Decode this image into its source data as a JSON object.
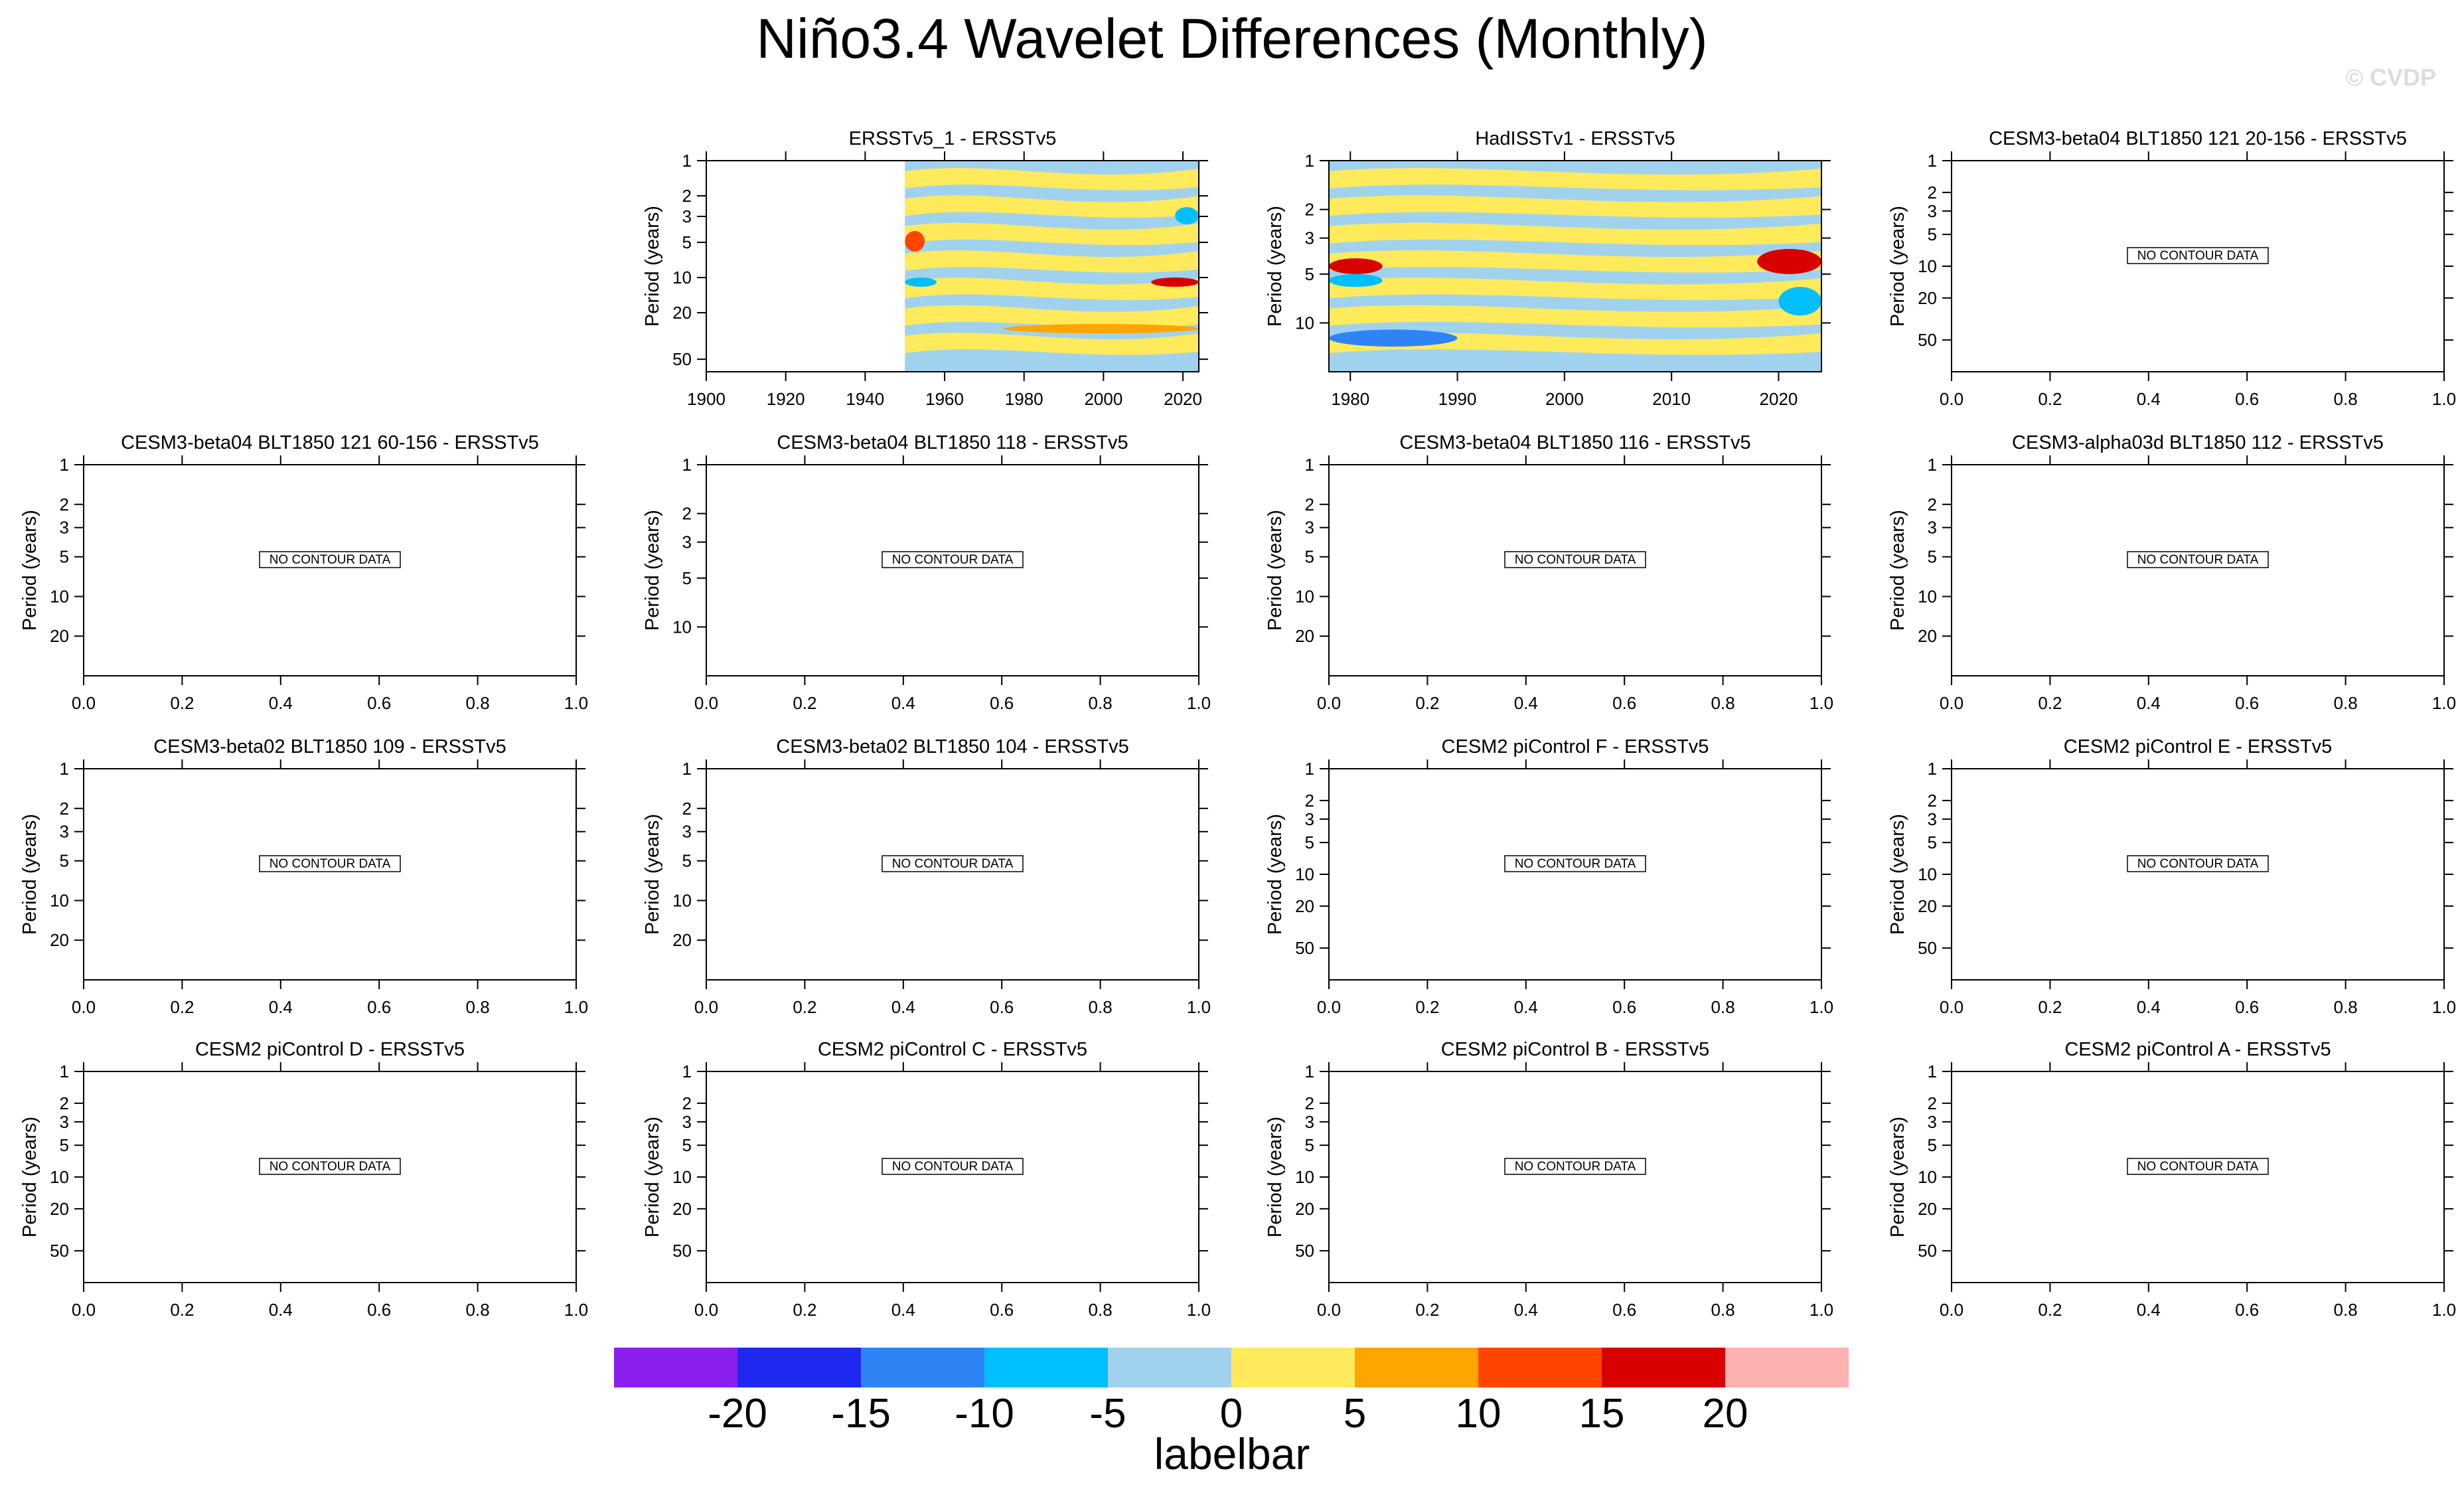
{
  "title": "Niño3.4 Wavelet Differences (Monthly)",
  "watermark": "© CVDP",
  "panels": [
    {
      "title": "ERSSTv5_1 - ERSSTv5",
      "has_data": true,
      "y_ticks": [
        "1",
        "2",
        "3",
        "5",
        "10",
        "20",
        "50"
      ],
      "x_ticks": [
        "1900",
        "1920",
        "1940",
        "1960",
        "1980",
        "2000",
        "2020"
      ]
    },
    {
      "title": "HadISSTv1 - ERSSTv5",
      "has_data": true,
      "y_ticks": [
        "1",
        "2",
        "3",
        "5",
        "10"
      ],
      "x_ticks": [
        "1980",
        "1990",
        "2000",
        "2010",
        "2020"
      ]
    },
    {
      "title": "CESM3-beta04 BLT1850 121 20-156 - ERSSTv5",
      "has_data": false,
      "y_ticks": [
        "1",
        "2",
        "3",
        "5",
        "10",
        "20",
        "50"
      ],
      "x_ticks": [
        "0.0",
        "0.2",
        "0.4",
        "0.6",
        "0.8",
        "1.0"
      ]
    },
    {
      "title": "CESM3-beta04 BLT1850 121 60-156 - ERSSTv5",
      "has_data": false,
      "y_ticks": [
        "1",
        "2",
        "3",
        "5",
        "10",
        "20"
      ],
      "x_ticks": [
        "0.0",
        "0.2",
        "0.4",
        "0.6",
        "0.8",
        "1.0"
      ]
    },
    {
      "title": "CESM3-beta04 BLT1850 118 - ERSSTv5",
      "has_data": false,
      "y_ticks": [
        "1",
        "2",
        "3",
        "5",
        "10"
      ],
      "x_ticks": [
        "0.0",
        "0.2",
        "0.4",
        "0.6",
        "0.8",
        "1.0"
      ]
    },
    {
      "title": "CESM3-beta04 BLT1850 116 - ERSSTv5",
      "has_data": false,
      "y_ticks": [
        "1",
        "2",
        "3",
        "5",
        "10",
        "20"
      ],
      "x_ticks": [
        "0.0",
        "0.2",
        "0.4",
        "0.6",
        "0.8",
        "1.0"
      ]
    },
    {
      "title": "CESM3-alpha03d BLT1850 112 - ERSSTv5",
      "has_data": false,
      "y_ticks": [
        "1",
        "2",
        "3",
        "5",
        "10",
        "20"
      ],
      "x_ticks": [
        "0.0",
        "0.2",
        "0.4",
        "0.6",
        "0.8",
        "1.0"
      ]
    },
    {
      "title": "CESM3-beta02 BLT1850 109 - ERSSTv5",
      "has_data": false,
      "y_ticks": [
        "1",
        "2",
        "3",
        "5",
        "10",
        "20"
      ],
      "x_ticks": [
        "0.0",
        "0.2",
        "0.4",
        "0.6",
        "0.8",
        "1.0"
      ]
    },
    {
      "title": "CESM3-beta02 BLT1850 104 - ERSSTv5",
      "has_data": false,
      "y_ticks": [
        "1",
        "2",
        "3",
        "5",
        "10",
        "20"
      ],
      "x_ticks": [
        "0.0",
        "0.2",
        "0.4",
        "0.6",
        "0.8",
        "1.0"
      ]
    },
    {
      "title": "CESM2 piControl F - ERSSTv5",
      "has_data": false,
      "y_ticks": [
        "1",
        "2",
        "3",
        "5",
        "10",
        "20",
        "50"
      ],
      "x_ticks": [
        "0.0",
        "0.2",
        "0.4",
        "0.6",
        "0.8",
        "1.0"
      ]
    },
    {
      "title": "CESM2 piControl E - ERSSTv5",
      "has_data": false,
      "y_ticks": [
        "1",
        "2",
        "3",
        "5",
        "10",
        "20",
        "50"
      ],
      "x_ticks": [
        "0.0",
        "0.2",
        "0.4",
        "0.6",
        "0.8",
        "1.0"
      ]
    },
    {
      "title": "CESM2 piControl D - ERSSTv5",
      "has_data": false,
      "y_ticks": [
        "1",
        "2",
        "3",
        "5",
        "10",
        "20",
        "50"
      ],
      "x_ticks": [
        "0.0",
        "0.2",
        "0.4",
        "0.6",
        "0.8",
        "1.0"
      ]
    },
    {
      "title": "CESM2 piControl C - ERSSTv5",
      "has_data": false,
      "y_ticks": [
        "1",
        "2",
        "3",
        "5",
        "10",
        "20",
        "50"
      ],
      "x_ticks": [
        "0.0",
        "0.2",
        "0.4",
        "0.6",
        "0.8",
        "1.0"
      ]
    },
    {
      "title": "CESM2 piControl B - ERSSTv5",
      "has_data": false,
      "y_ticks": [
        "1",
        "2",
        "3",
        "5",
        "10",
        "20",
        "50"
      ],
      "x_ticks": [
        "0.0",
        "0.2",
        "0.4",
        "0.6",
        "0.8",
        "1.0"
      ]
    },
    {
      "title": "CESM2 piControl A - ERSSTv5",
      "has_data": false,
      "y_ticks": [
        "1",
        "2",
        "3",
        "5",
        "10",
        "20",
        "50"
      ],
      "x_ticks": [
        "0.0",
        "0.2",
        "0.4",
        "0.6",
        "0.8",
        "1.0"
      ]
    }
  ],
  "y_axis_label": "Period (years)",
  "no_data_text": "NO CONTOUR DATA",
  "chart_data": {
    "type": "heatmap",
    "title": "Niño3.4 Wavelet Differences (Monthly)",
    "ylabel": "Period (years)",
    "y_scale": "log",
    "colorbar": {
      "title": "labelbar",
      "levels": [
        -20,
        -15,
        -10,
        -5,
        0,
        5,
        10,
        15,
        20
      ],
      "tick_labels": [
        "-20",
        "-15",
        "-10",
        "-5",
        "0",
        "5",
        "10",
        "15",
        "20"
      ],
      "colors": [
        "#8a1ff0",
        "#1e28ee",
        "#2e84f5",
        "#00bfff",
        "#a0d2ee",
        "#ffea5c",
        "#ffa500",
        "#ff4500",
        "#d90000",
        "#ffb0b0"
      ]
    },
    "panels": [
      {
        "title": "ERSSTv5_1 - ERSSTv5",
        "x_range": [
          1900,
          2024
        ],
        "data_start": 1950,
        "y_range": [
          1,
          64
        ],
        "features": [
          {
            "x": [
              1950,
              1955
            ],
            "period": [
              4,
              6
            ],
            "value": 12
          },
          {
            "x": [
              2012,
              2024
            ],
            "period": [
              10,
              12
            ],
            "value": 17
          },
          {
            "x": [
              1950,
              1958
            ],
            "period": [
              10,
              12
            ],
            "value": -8
          },
          {
            "x": [
              2018,
              2024
            ],
            "period": [
              2.5,
              3.5
            ],
            "value": -8
          },
          {
            "x": [
              1975,
              2024
            ],
            "period": [
              25,
              30
            ],
            "value": 8
          }
        ]
      },
      {
        "title": "HadISSTv1 - ERSSTv5",
        "x_range": [
          1978,
          2024
        ],
        "y_range": [
          1,
          20
        ],
        "features": [
          {
            "x": [
              1978,
              1983
            ],
            "period": [
              4,
              5
            ],
            "value": 18
          },
          {
            "x": [
              1978,
              1983
            ],
            "period": [
              5,
              6
            ],
            "value": -10
          },
          {
            "x": [
              2018,
              2024
            ],
            "period": [
              3.5,
              5
            ],
            "value": 15
          },
          {
            "x": [
              1978,
              1990
            ],
            "period": [
              11,
              14
            ],
            "value": -11
          },
          {
            "x": [
              2020,
              2024
            ],
            "period": [
              6,
              9
            ],
            "value": -8
          }
        ]
      }
    ]
  }
}
